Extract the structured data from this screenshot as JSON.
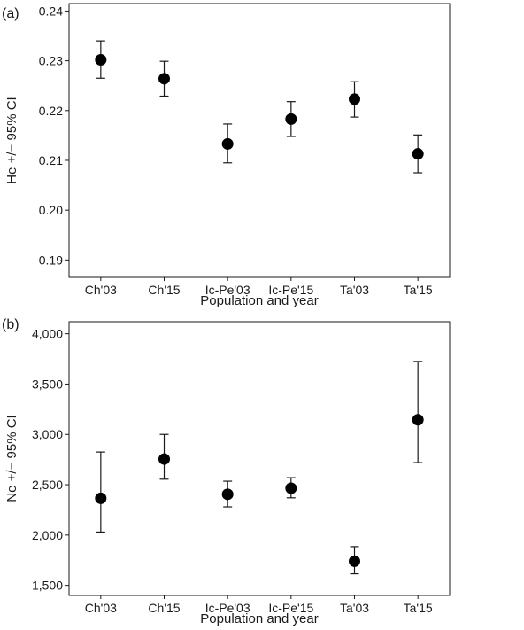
{
  "chart_data": [
    {
      "type": "scatter",
      "panel_label": "(a)",
      "xlabel": "Population and year",
      "ylabel": "He +/− 95% CI",
      "categories": [
        "Ch'03",
        "Ch'15",
        "Ic-Pe'03",
        "Ic-Pe'15",
        "Ta'03",
        "Ta'15"
      ],
      "values": [
        0.2302,
        0.2264,
        0.2133,
        0.2183,
        0.2223,
        0.2113
      ],
      "ci_low": [
        0.2265,
        0.2229,
        0.2095,
        0.2148,
        0.2187,
        0.2075
      ],
      "ci_high": [
        0.234,
        0.2299,
        0.2173,
        0.2218,
        0.2258,
        0.2151
      ],
      "ylim": [
        0.1865,
        0.2415
      ],
      "yticks": [
        0.19,
        0.2,
        0.21,
        0.22,
        0.23,
        0.24
      ],
      "ytick_labels": [
        "0.19",
        "0.20",
        "0.21",
        "0.22",
        "0.23",
        "0.24"
      ],
      "grid": false,
      "error_bars": "95% CI"
    },
    {
      "type": "scatter",
      "panel_label": "(b)",
      "xlabel": "Population and year",
      "ylabel": "Ne +/− 95% CI",
      "categories": [
        "Ch'03",
        "Ch'15",
        "Ic-Pe'03",
        "Ic-Pe'15",
        "Ta'03",
        "Ta'15"
      ],
      "values": [
        2365,
        2755,
        2405,
        2465,
        1740,
        3145
      ],
      "ci_low": [
        2030,
        2555,
        2280,
        2370,
        1615,
        2720
      ],
      "ci_high": [
        2825,
        3000,
        2535,
        2570,
        1885,
        3725
      ],
      "ylim": [
        1400,
        4120
      ],
      "yticks": [
        1500,
        2000,
        2500,
        3000,
        3500,
        4000
      ],
      "ytick_labels": [
        "1,500",
        "2,000",
        "2,500",
        "3,000",
        "3,500",
        "4,000"
      ],
      "grid": false,
      "error_bars": "95% CI"
    }
  ]
}
